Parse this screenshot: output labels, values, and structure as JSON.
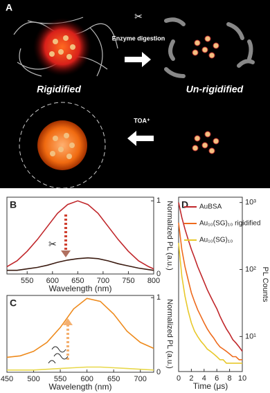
{
  "figure": {
    "panel_label": "A",
    "top_arrow_text": "Enzyme digestion",
    "left_label": "Rigidified",
    "right_label": "Un-rigidified",
    "bottom_arrow_text": "TOA⁺"
  },
  "chart_data": [
    {
      "type": "line",
      "panel": "B",
      "x_label": "Wavelength (nm)",
      "y_label": "Normalized PL (a.u.)",
      "x": [
        510,
        530,
        550,
        570,
        590,
        610,
        630,
        650,
        670,
        690,
        710,
        730,
        750,
        770,
        790,
        800
      ],
      "series": [
        {
          "color": "#c0262a",
          "values": [
            0.1,
            0.18,
            0.31,
            0.47,
            0.65,
            0.83,
            0.95,
            1.0,
            0.95,
            0.83,
            0.65,
            0.47,
            0.31,
            0.18,
            0.1,
            0.07
          ]
        },
        {
          "color": "#3a1a10",
          "values": [
            0.05,
            0.05,
            0.07,
            0.09,
            0.12,
            0.16,
            0.19,
            0.21,
            0.22,
            0.21,
            0.18,
            0.14,
            0.11,
            0.08,
            0.06,
            0.05
          ]
        }
      ],
      "xlim": [
        510,
        800
      ],
      "xticks": [
        550,
        600,
        650,
        700,
        750,
        800
      ],
      "ylim": [
        0,
        1.05
      ],
      "yticks": [
        0,
        1
      ]
    },
    {
      "type": "line",
      "panel": "C",
      "x_label": "Wavelength (nm)",
      "y_label": "Normalized PL (a.u.)",
      "x": [
        450,
        475,
        500,
        525,
        550,
        575,
        600,
        625,
        650,
        675,
        700,
        725
      ],
      "series": [
        {
          "color": "#ee8a1c",
          "values": [
            0.2,
            0.22,
            0.28,
            0.4,
            0.6,
            0.85,
            0.99,
            0.95,
            0.78,
            0.55,
            0.4,
            0.32
          ]
        },
        {
          "color": "#e8d84a",
          "values": [
            0.03,
            0.03,
            0.03,
            0.04,
            0.05,
            0.06,
            0.07,
            0.07,
            0.06,
            0.05,
            0.04,
            0.03
          ]
        }
      ],
      "xlim": [
        450,
        725
      ],
      "xticks": [
        450,
        500,
        550,
        600,
        650,
        700
      ],
      "ylim": [
        0,
        1.03
      ],
      "yticks": [
        0,
        1
      ]
    },
    {
      "type": "line",
      "panel": "D",
      "x_label": "Time (μs)",
      "y_label": "PL Counts",
      "log_y": true,
      "x": [
        0,
        0.5,
        1,
        1.5,
        2,
        2.5,
        3,
        3.5,
        4,
        4.5,
        5,
        5.5,
        6,
        6.5,
        7,
        7.5,
        8,
        8.5,
        9,
        9.5,
        10
      ],
      "series": [
        {
          "name": "AuBSA",
          "color": "#c0262a",
          "values": [
            1000,
            600,
            400,
            280,
            200,
            150,
            110,
            85,
            65,
            50,
            40,
            32,
            26,
            20,
            16,
            13,
            11,
            9,
            8,
            7,
            6
          ]
        },
        {
          "name": "Au₁₀(SG)₁₀ rigidified",
          "color": "#ee6a1c",
          "values": [
            500,
            200,
            110,
            70,
            45,
            33,
            25,
            20,
            16,
            13,
            11,
            9.5,
            8,
            7,
            6.5,
            6,
            5.5,
            5,
            5,
            4.5,
            4.5
          ]
        },
        {
          "name": "Au₁₀(SG)₁₀",
          "color": "#e8c82a",
          "values": [
            250,
            80,
            40,
            24,
            16,
            12,
            10,
            8.5,
            7.5,
            6.5,
            6,
            5.5,
            5,
            4.5,
            4.5,
            4,
            4,
            4,
            4,
            4,
            4
          ]
        }
      ],
      "xlim": [
        0,
        10
      ],
      "xticks": [
        0,
        2,
        4,
        6,
        8,
        10
      ],
      "ylim": [
        3,
        1200
      ],
      "yticks": [
        {
          "value": 10,
          "label": "10¹"
        },
        {
          "value": 100,
          "label": "10²"
        },
        {
          "value": 1000,
          "label": "10³"
        }
      ]
    }
  ]
}
